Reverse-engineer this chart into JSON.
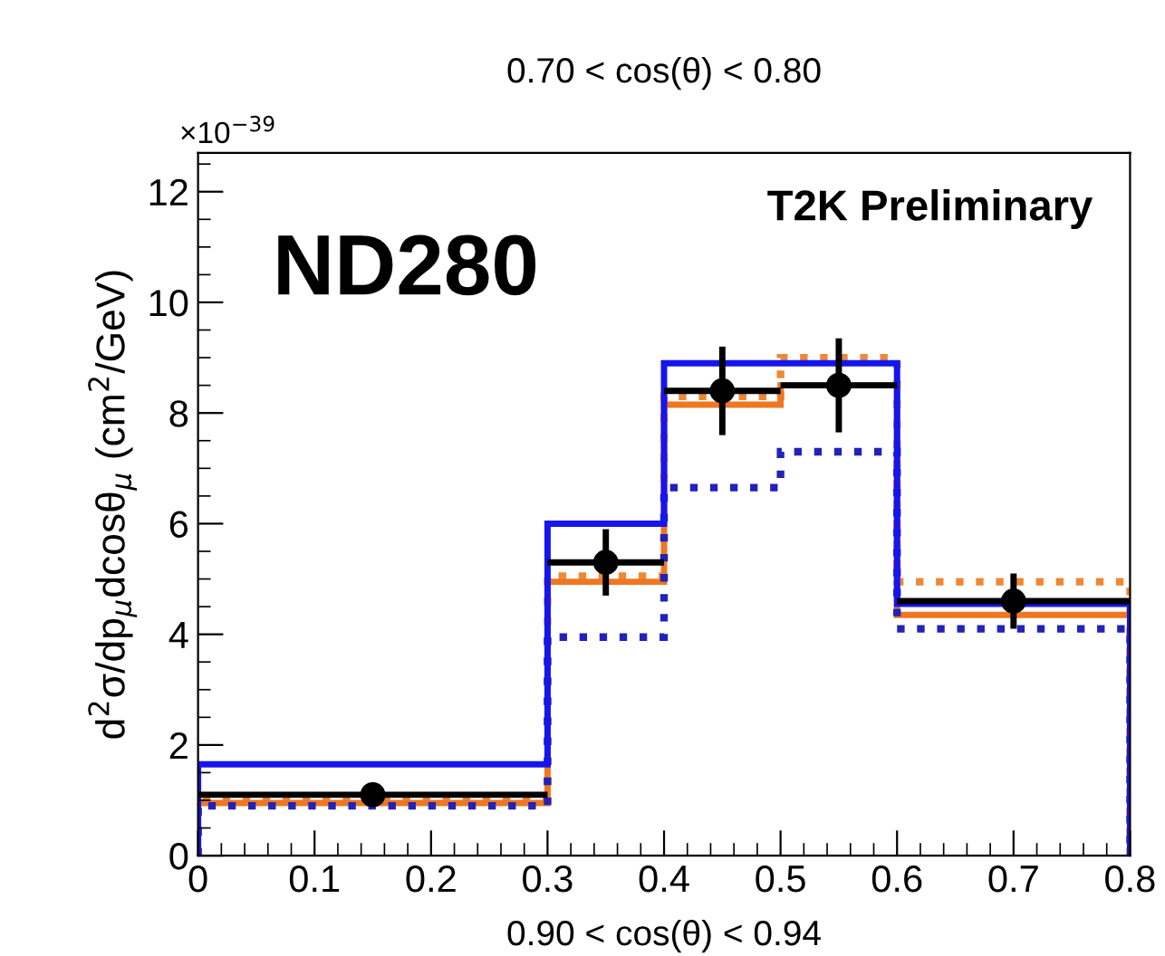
{
  "chart_data": {
    "type": "histogram",
    "title": "0.70 < cos(θ) < 0.80",
    "xlabel": "0.90 < cos(θ) < 0.94",
    "ylabel": "d$^{2}$σ/dp$_{μ}$dcosθ$_{μ}$ (cm$^{2}$/GeV)",
    "annotations": [
      "×10$^{−39}$",
      "ND280",
      "T2K Preliminary"
    ],
    "bins": [
      0,
      0.3,
      0.4,
      0.5,
      0.6,
      0.8
    ],
    "series": [
      {
        "color": "#ee8833",
        "line_style": "dotted",
        "values": [
          1.0,
          5.05,
          8.3,
          9.0,
          4.95
        ]
      },
      {
        "color": "#ee7722",
        "line_style": "solid",
        "values": [
          0.95,
          4.95,
          8.15,
          8.5,
          4.35
        ]
      },
      {
        "color": "#2222bb",
        "line_style": "dotted",
        "values": [
          0.9,
          3.95,
          6.65,
          7.3,
          4.1
        ]
      },
      {
        "color": "#1515ee",
        "line_style": "solid",
        "values": [
          1.65,
          6.0,
          8.9,
          8.9,
          4.55
        ]
      },
      {
        "type": "scatter",
        "color": "#000000",
        "marker": "circle",
        "x": [
          0.15,
          0.35,
          0.45,
          0.55,
          0.7
        ],
        "values": [
          1.1,
          5.3,
          8.4,
          8.5,
          4.6
        ],
        "errors": [
          0.15,
          0.6,
          0.8,
          0.85,
          0.5
        ],
        "xerrors": [
          0.15,
          0.05,
          0.05,
          0.05,
          0.1
        ]
      }
    ],
    "xlim": [
      0,
      0.8
    ],
    "ylim": [
      0,
      12.7
    ],
    "xticks": [
      0,
      0.1,
      0.2,
      0.3,
      0.4,
      0.5,
      0.6,
      0.7,
      0.8
    ],
    "yticks": [
      0,
      2,
      4,
      6,
      8,
      10,
      12
    ],
    "grid": false,
    "legend": false
  }
}
